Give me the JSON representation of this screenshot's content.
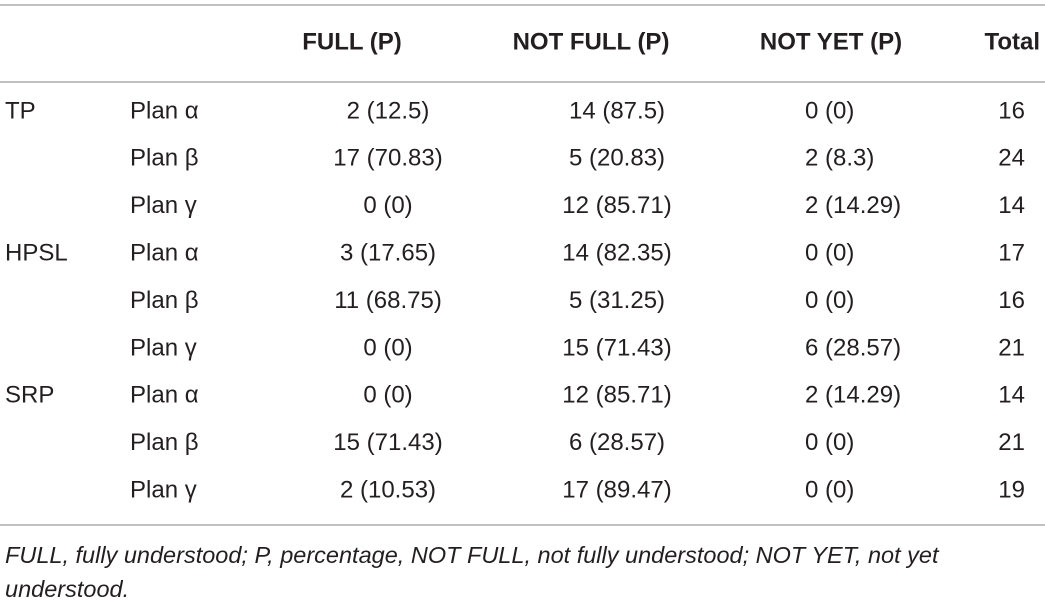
{
  "table": {
    "header": [
      "FULL (P)",
      "NOT FULL (P)",
      "NOT YET (P)",
      "Total"
    ],
    "groups": [
      {
        "name": "TP",
        "rows": [
          [
            "Plan α",
            "2 (12.5)",
            "14 (87.5)",
            "0 (0)",
            "16"
          ],
          [
            "Plan β",
            "17 (70.83)",
            "5 (20.83)",
            "2 (8.3)",
            "24"
          ],
          [
            "Plan γ",
            "0 (0)",
            "12 (85.71)",
            "2 (14.29)",
            "14"
          ]
        ]
      },
      {
        "name": "HPSL",
        "rows": [
          [
            "Plan α",
            "3 (17.65)",
            "14 (82.35)",
            "0 (0)",
            "17"
          ],
          [
            "Plan β",
            "11 (68.75)",
            "5 (31.25)",
            "0 (0)",
            "16"
          ],
          [
            "Plan γ",
            "0 (0)",
            "15 (71.43)",
            "6 (28.57)",
            "21"
          ]
        ]
      },
      {
        "name": "SRP",
        "rows": [
          [
            "Plan α",
            "0 (0)",
            "12 (85.71)",
            "2 (14.29)",
            "14"
          ],
          [
            "Plan β",
            "15 (71.43)",
            "6 (28.57)",
            "0 (0)",
            "21"
          ],
          [
            "Plan γ",
            "2 (10.53)",
            "17 (89.47)",
            "0 (0)",
            "19"
          ]
        ]
      }
    ],
    "footnote": "FULL, fully understood; P, percentage, NOT FULL, not fully understood; NOT YET, not yet understood."
  }
}
